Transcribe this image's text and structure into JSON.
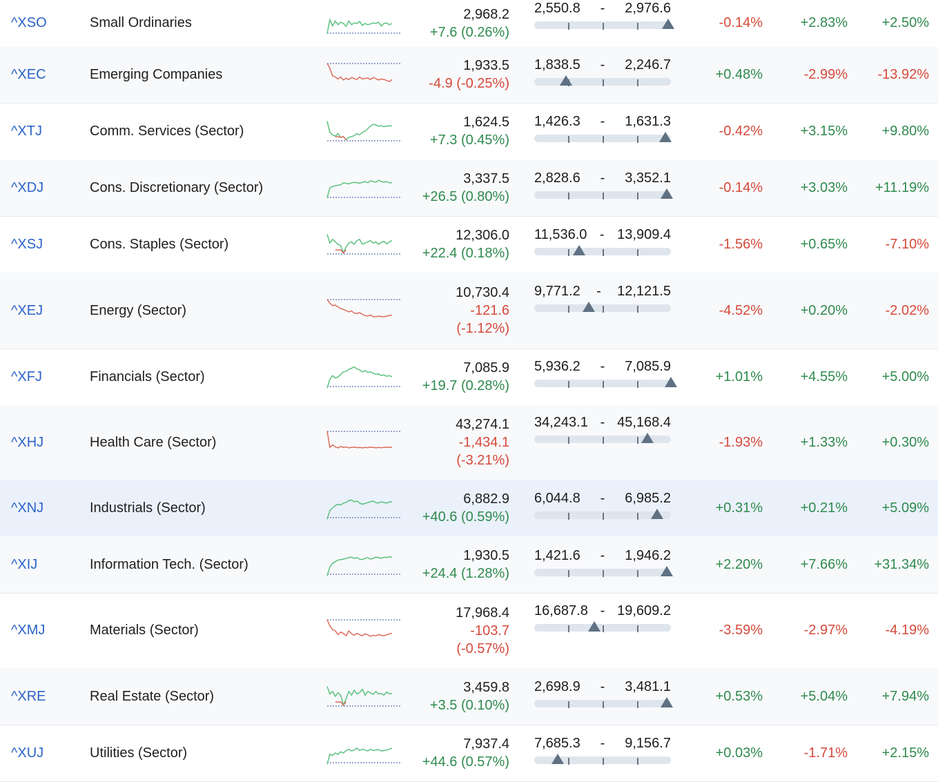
{
  "rows": [
    {
      "symbol": "^XSO",
      "name": "Small Ordinaries",
      "last": "2,968.2",
      "change": "+7.6 (0.26%)",
      "change_dir": "up",
      "low": "2,550.8",
      "sep": "-",
      "high": "2,976.6",
      "range_pos": 0.98,
      "p1": "-0.14%",
      "p2": "+2.83%",
      "p3": "+2.50%",
      "spark": {
        "trend": "up",
        "s": [
          0.9,
          0.35,
          0.6,
          0.4,
          0.55,
          0.45,
          0.5,
          0.62,
          0.4,
          0.55,
          0.48,
          0.5,
          0.42,
          0.58,
          0.5,
          0.55,
          0.52,
          0.48,
          0.5,
          0.45,
          0.6,
          0.5,
          0.48,
          0.55,
          0.5
        ]
      }
    },
    {
      "symbol": "^XEC",
      "name": "Emerging Companies",
      "last": "1,933.5",
      "change": "-4.9 (-0.25%)",
      "change_dir": "dn",
      "low": "1,838.5",
      "sep": "-",
      "high": "2,246.7",
      "range_pos": 0.23,
      "p1": "+0.48%",
      "p2": "-2.99%",
      "p3": "-13.92%",
      "spark": {
        "trend": "down",
        "s": [
          0.05,
          0.25,
          0.55,
          0.6,
          0.68,
          0.6,
          0.72,
          0.65,
          0.7,
          0.62,
          0.66,
          0.7,
          0.6,
          0.68,
          0.66,
          0.64,
          0.7,
          0.62,
          0.66,
          0.72,
          0.68,
          0.7,
          0.74,
          0.78,
          0.7
        ]
      }
    },
    {
      "symbol": "^XTJ",
      "name": "Comm. Services (Sector)",
      "last": "1,624.5",
      "change": "+7.3 (0.45%)",
      "change_dir": "up",
      "low": "1,426.3",
      "sep": "-",
      "high": "1,631.3",
      "range_pos": 0.96,
      "p1": "-0.42%",
      "p2": "+3.15%",
      "p3": "+9.80%",
      "spark": {
        "trend": "mixed",
        "s": [
          0.1,
          0.55,
          0.65,
          0.7,
          0.6,
          0.75,
          0.72,
          0.85,
          0.75,
          0.72,
          0.68,
          0.6,
          0.65,
          0.55,
          0.5,
          0.4,
          0.3,
          0.22,
          0.25,
          0.3,
          0.28,
          0.32,
          0.3,
          0.28,
          0.3
        ]
      }
    },
    {
      "symbol": "^XDJ",
      "name": "Cons. Discretionary (Sector)",
      "last": "3,337.5",
      "change": "+26.5 (0.80%)",
      "change_dir": "up",
      "low": "2,828.6",
      "sep": "-",
      "high": "3,352.1",
      "range_pos": 0.97,
      "p1": "-0.14%",
      "p2": "+3.03%",
      "p3": "+11.19%",
      "spark": {
        "trend": "up",
        "s": [
          0.9,
          0.5,
          0.45,
          0.42,
          0.4,
          0.38,
          0.3,
          0.32,
          0.35,
          0.3,
          0.28,
          0.3,
          0.32,
          0.28,
          0.25,
          0.3,
          0.22,
          0.25,
          0.28,
          0.2,
          0.25,
          0.28,
          0.25,
          0.3,
          0.3
        ]
      }
    },
    {
      "symbol": "^XSJ",
      "name": "Cons. Staples (Sector)",
      "last": "12,306.0",
      "change": "+22.4 (0.18%)",
      "change_dir": "up",
      "low": "11,536.0",
      "sep": "-",
      "high": "13,909.4",
      "range_pos": 0.33,
      "p1": "-1.56%",
      "p2": "+0.65%",
      "p3": "-7.10%",
      "spark": {
        "trend": "mixed",
        "s": [
          0.1,
          0.45,
          0.3,
          0.4,
          0.5,
          0.55,
          0.85,
          0.6,
          0.45,
          0.4,
          0.5,
          0.35,
          0.3,
          0.5,
          0.45,
          0.4,
          0.35,
          0.45,
          0.4,
          0.5,
          0.42,
          0.38,
          0.48,
          0.4,
          0.35
        ]
      }
    },
    {
      "symbol": "^XEJ",
      "name": "Energy (Sector)",
      "last": "10,730.4",
      "change": "-121.6",
      "change2": "(-1.12%)",
      "change_dir": "dn",
      "low": "9,771.2",
      "sep": "-",
      "high": "12,121.5",
      "range_pos": 0.4,
      "p1": "-4.52%",
      "p2": "+0.20%",
      "p3": "-2.02%",
      "spark": {
        "trend": "down",
        "s": [
          0.05,
          0.2,
          0.3,
          0.28,
          0.35,
          0.42,
          0.45,
          0.5,
          0.55,
          0.52,
          0.6,
          0.62,
          0.58,
          0.65,
          0.7,
          0.72,
          0.68,
          0.74,
          0.75,
          0.72,
          0.74,
          0.75,
          0.72,
          0.7,
          0.68
        ]
      }
    },
    {
      "symbol": "^XFJ",
      "name": "Financials (Sector)",
      "last": "7,085.9",
      "change": "+19.7 (0.28%)",
      "change_dir": "up",
      "low": "5,936.2",
      "sep": "-",
      "high": "7,085.9",
      "range_pos": 1.0,
      "p1": "+1.01%",
      "p2": "+4.55%",
      "p3": "+5.00%",
      "spark": {
        "trend": "up",
        "s": [
          0.95,
          0.6,
          0.45,
          0.55,
          0.5,
          0.4,
          0.3,
          0.28,
          0.2,
          0.15,
          0.1,
          0.18,
          0.22,
          0.3,
          0.25,
          0.32,
          0.3,
          0.35,
          0.4,
          0.38,
          0.45,
          0.42,
          0.48,
          0.45,
          0.5
        ]
      }
    },
    {
      "symbol": "^XHJ",
      "name": "Health Care (Sector)",
      "last": "43,274.1",
      "change": "-1,434.1",
      "change2": "(-3.21%)",
      "change_dir": "dn",
      "low": "34,243.1",
      "sep": "-",
      "high": "45,168.4",
      "range_pos": 0.83,
      "p1": "-1.93%",
      "p2": "+1.33%",
      "p3": "+0.30%",
      "spark": {
        "trend": "down",
        "s": [
          0.05,
          0.7,
          0.6,
          0.68,
          0.72,
          0.66,
          0.7,
          0.68,
          0.72,
          0.7,
          0.69,
          0.71,
          0.7,
          0.72,
          0.7,
          0.71,
          0.69,
          0.7,
          0.72,
          0.7,
          0.71,
          0.7,
          0.69,
          0.7,
          0.7
        ]
      }
    },
    {
      "symbol": "^XNJ",
      "name": "Industrials (Sector)",
      "last": "6,882.9",
      "change": "+40.6 (0.59%)",
      "change_dir": "up",
      "low": "6,044.8",
      "sep": "-",
      "high": "6,985.2",
      "range_pos": 0.9,
      "p1": "+0.31%",
      "p2": "+0.21%",
      "p3": "+5.09%",
      "spark": {
        "trend": "up",
        "s": [
          0.95,
          0.6,
          0.5,
          0.4,
          0.35,
          0.38,
          0.3,
          0.28,
          0.2,
          0.18,
          0.25,
          0.22,
          0.3,
          0.35,
          0.32,
          0.28,
          0.25,
          0.22,
          0.28,
          0.3,
          0.25,
          0.28,
          0.3,
          0.26,
          0.25
        ]
      }
    },
    {
      "symbol": "^XIJ",
      "name": "Information Tech. (Sector)",
      "last": "1,930.5",
      "change": "+24.4 (1.28%)",
      "change_dir": "up",
      "low": "1,421.6",
      "sep": "-",
      "high": "1,946.2",
      "range_pos": 0.97,
      "p1": "+2.20%",
      "p2": "+7.66%",
      "p3": "+31.34%",
      "spark": {
        "trend": "up",
        "s": [
          0.95,
          0.6,
          0.45,
          0.38,
          0.32,
          0.3,
          0.28,
          0.25,
          0.22,
          0.2,
          0.25,
          0.22,
          0.28,
          0.3,
          0.25,
          0.22,
          0.28,
          0.25,
          0.2,
          0.22,
          0.25,
          0.2,
          0.22,
          0.18,
          0.2
        ]
      }
    },
    {
      "symbol": "^XMJ",
      "name": "Materials (Sector)",
      "last": "17,968.4",
      "change": "-103.7",
      "change2": "(-0.57%)",
      "change_dir": "dn",
      "low": "16,687.8",
      "sep": "-",
      "high": "19,609.2",
      "range_pos": 0.44,
      "p1": "-3.59%",
      "p2": "-2.97%",
      "p3": "-4.19%",
      "spark": {
        "trend": "down",
        "s": [
          0.05,
          0.3,
          0.45,
          0.5,
          0.65,
          0.55,
          0.6,
          0.7,
          0.5,
          0.62,
          0.68,
          0.6,
          0.65,
          0.7,
          0.62,
          0.66,
          0.72,
          0.68,
          0.7,
          0.65,
          0.68,
          0.7,
          0.66,
          0.62,
          0.6
        ]
      }
    },
    {
      "symbol": "^XRE",
      "name": "Real Estate (Sector)",
      "last": "3,459.8",
      "change": "+3.5 (0.10%)",
      "change_dir": "up",
      "low": "2,698.9",
      "sep": "-",
      "high": "3,481.1",
      "range_pos": 0.97,
      "p1": "+0.53%",
      "p2": "+5.04%",
      "p3": "+7.94%",
      "spark": {
        "trend": "mixed",
        "s": [
          0.1,
          0.4,
          0.3,
          0.5,
          0.35,
          0.45,
          0.85,
          0.6,
          0.3,
          0.45,
          0.25,
          0.4,
          0.35,
          0.2,
          0.45,
          0.3,
          0.35,
          0.42,
          0.3,
          0.4,
          0.38,
          0.45,
          0.32,
          0.4,
          0.38
        ]
      }
    },
    {
      "symbol": "^XUJ",
      "name": "Utilities (Sector)",
      "last": "7,937.4",
      "change": "+44.6 (0.57%)",
      "change_dir": "up",
      "low": "7,685.3",
      "sep": "-",
      "high": "9,156.7",
      "range_pos": 0.17,
      "p1": "+0.03%",
      "p2": "-1.71%",
      "p3": "+2.15%",
      "spark": {
        "trend": "up",
        "s": [
          0.95,
          0.55,
          0.6,
          0.5,
          0.55,
          0.45,
          0.5,
          0.4,
          0.35,
          0.42,
          0.38,
          0.3,
          0.4,
          0.35,
          0.38,
          0.42,
          0.35,
          0.4,
          0.38,
          0.36,
          0.42,
          0.4,
          0.38,
          0.35,
          0.3
        ]
      }
    }
  ],
  "colors": {
    "up": "#2f8a4e",
    "down": "#d6493a",
    "spark_up": "#5cc17f",
    "spark_down": "#dd6b5c",
    "baseline": "#5b6fb0",
    "symbol": "#2a63c9"
  }
}
